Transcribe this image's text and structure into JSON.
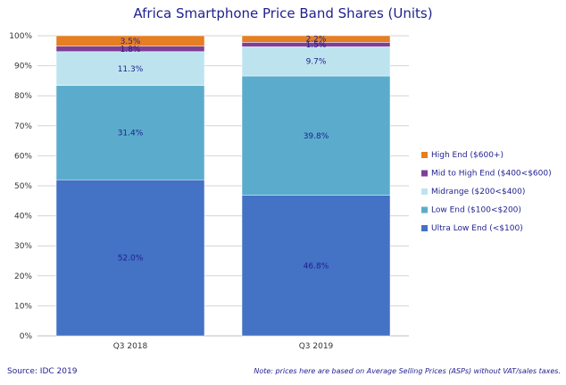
{
  "chart_data": {
    "type": "bar",
    "stacked": true,
    "title": "Africa Smartphone Price Band Shares (Units)",
    "categories": [
      "Q3 2018",
      "Q3 2019"
    ],
    "ylim": [
      0,
      100
    ],
    "yticks": [
      "0%",
      "10%",
      "20%",
      "30%",
      "40%",
      "50%",
      "60%",
      "70%",
      "80%",
      "90%",
      "100%"
    ],
    "series": [
      {
        "name": "Ultra Low End (<$100)",
        "color": "#4472C4",
        "values": [
          52.0,
          46.8
        ],
        "labels": [
          "52.0%",
          "46.8%"
        ]
      },
      {
        "name": "Low End ($100<$200)",
        "color": "#5BACCC",
        "values": [
          31.4,
          39.8
        ],
        "labels": [
          "31.4%",
          "39.8%"
        ]
      },
      {
        "name": "Midrange ($200<$400)",
        "color": "#BDE4EE",
        "values": [
          11.3,
          9.7
        ],
        "labels": [
          "11.3%",
          "9.7%"
        ]
      },
      {
        "name": "Mid to High End ($400<$600)",
        "color": "#7E3F98",
        "values": [
          1.8,
          1.5
        ],
        "labels": [
          "1.8%",
          "1.5%"
        ]
      },
      {
        "name": "High End ($600+)",
        "color": "#E67E22",
        "values": [
          3.5,
          2.2
        ],
        "labels": [
          "3.5%",
          "2.2%"
        ]
      }
    ],
    "legend": "right"
  },
  "footer": {
    "source": "Source: IDC 2019",
    "note": "Note: prices here are based on Average Selling Prices (ASPs) without VAT/sales taxes."
  }
}
